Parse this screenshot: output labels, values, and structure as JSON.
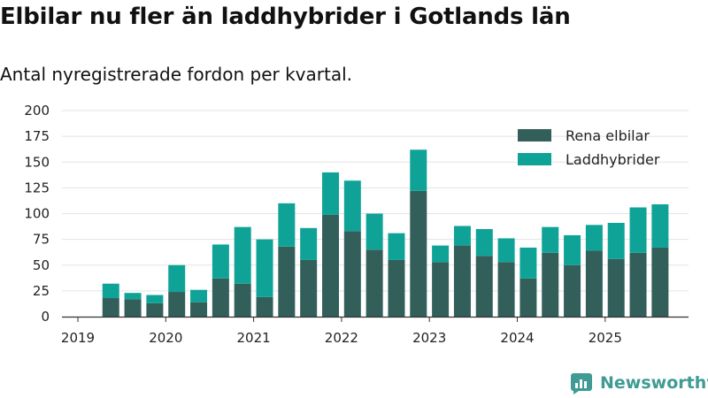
{
  "header": {
    "title": "Elbilar nu fler än laddhybrider i Gotlands län",
    "subtitle": "Antal nyregistrerade fordon per kvartal."
  },
  "brand": {
    "name": "Newsworthy",
    "icon": "newsworthy-logo-icon"
  },
  "colors": {
    "rena_elbilar": "#335f5a",
    "laddhybrider": "#0fa398",
    "grid": "#e3e3e3",
    "axis": "#333333"
  },
  "chart_data": {
    "type": "bar",
    "stacked": true,
    "title": "Elbilar nu fler än laddhybrider i Gotlands län",
    "subtitle": "Antal nyregistrerade fordon per kvartal.",
    "xlabel": "",
    "ylabel": "",
    "ylim": [
      0,
      200
    ],
    "yticks": [
      0,
      25,
      50,
      75,
      100,
      125,
      150,
      175,
      200
    ],
    "year_ticks": [
      "2019",
      "2020",
      "2021",
      "2022",
      "2023",
      "2024",
      "2025"
    ],
    "legend_position": "top-right",
    "grid": true,
    "categories": [
      "2019 Q2",
      "2019 Q3",
      "2019 Q4",
      "2020 Q1",
      "2020 Q2",
      "2020 Q3",
      "2020 Q4",
      "2021 Q1",
      "2021 Q2",
      "2021 Q3",
      "2021 Q4",
      "2022 Q1",
      "2022 Q2",
      "2022 Q3",
      "2022 Q4",
      "2023 Q1",
      "2023 Q2",
      "2023 Q3",
      "2023 Q4",
      "2024 Q1",
      "2024 Q2",
      "2024 Q3",
      "2024 Q4",
      "2025 Q1",
      "2025 Q2",
      "2025 Q3"
    ],
    "series": [
      {
        "name": "Rena elbilar",
        "values": [
          18,
          17,
          13,
          24,
          14,
          37,
          32,
          19,
          68,
          55,
          99,
          83,
          65,
          55,
          122,
          53,
          69,
          59,
          53,
          37,
          62,
          50,
          64,
          56,
          62,
          67
        ]
      },
      {
        "name": "Laddhybrider",
        "values": [
          14,
          6,
          8,
          26,
          12,
          33,
          55,
          56,
          42,
          31,
          41,
          49,
          35,
          26,
          40,
          16,
          19,
          26,
          23,
          30,
          25,
          29,
          25,
          35,
          44,
          42
        ]
      }
    ]
  }
}
